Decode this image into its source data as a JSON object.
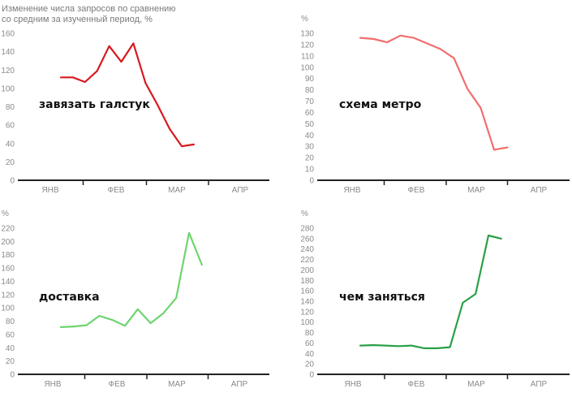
{
  "caption_lines": [
    "Изменение числа запросов по сравнению",
    "со средним за изученный период, %"
  ],
  "chart_data": [
    {
      "type": "line",
      "label": "завязать галстук",
      "color": "#d71920",
      "ylabel": "%",
      "ylim": [
        0,
        160
      ],
      "yticks": [
        0,
        20,
        40,
        60,
        80,
        100,
        120,
        140,
        160
      ],
      "categories": [
        "ЯНВ",
        "ФЕВ",
        "МАР",
        "АПР"
      ],
      "x": [
        0,
        1,
        2,
        3,
        4,
        5,
        6,
        7,
        8,
        9,
        10,
        11
      ],
      "values": [
        112,
        112,
        107,
        119,
        146,
        129,
        149,
        106,
        82,
        56,
        37,
        39
      ]
    },
    {
      "type": "line",
      "label": "схема метро",
      "color": "#f26d6d",
      "ylabel": "%",
      "ylim": [
        0,
        130
      ],
      "yticks": [
        0,
        10,
        20,
        30,
        40,
        50,
        60,
        70,
        80,
        90,
        100,
        110,
        120,
        130
      ],
      "categories": [
        "ЯНВ",
        "ФЕВ",
        "МАР",
        "АПР"
      ],
      "x": [
        0,
        1,
        2,
        3,
        4,
        5,
        6,
        7,
        8,
        9,
        10,
        11
      ],
      "values": [
        126,
        125,
        122,
        128,
        126,
        121,
        116,
        108,
        81,
        64,
        27,
        29
      ]
    },
    {
      "type": "line",
      "label": "доставка",
      "color": "#6fd46f",
      "ylabel": "%",
      "ylim": [
        0,
        220
      ],
      "yticks": [
        0,
        20,
        40,
        60,
        80,
        100,
        120,
        140,
        160,
        180,
        200,
        220
      ],
      "categories": [
        "ЯНВ",
        "ФЕВ",
        "МАР",
        "АПР"
      ],
      "x": [
        0,
        1,
        2,
        3,
        4,
        5,
        6,
        7,
        8,
        9,
        10,
        11
      ],
      "values": [
        71,
        72,
        74,
        88,
        82,
        73,
        98,
        77,
        92,
        115,
        213,
        165
      ]
    },
    {
      "type": "line",
      "label": "чем заняться",
      "color": "#2aa046",
      "ylabel": "%",
      "ylim": [
        0,
        280
      ],
      "yticks": [
        0,
        20,
        40,
        60,
        80,
        100,
        120,
        140,
        160,
        180,
        200,
        220,
        240,
        260,
        280
      ],
      "categories": [
        "ЯНВ",
        "ФЕВ",
        "МАР",
        "АПР"
      ],
      "x": [
        0,
        1,
        2,
        3,
        4,
        5,
        6,
        7,
        8,
        9,
        10,
        11
      ],
      "values": [
        55,
        56,
        55,
        54,
        55,
        50,
        50,
        52,
        137,
        154,
        266,
        260
      ]
    }
  ]
}
